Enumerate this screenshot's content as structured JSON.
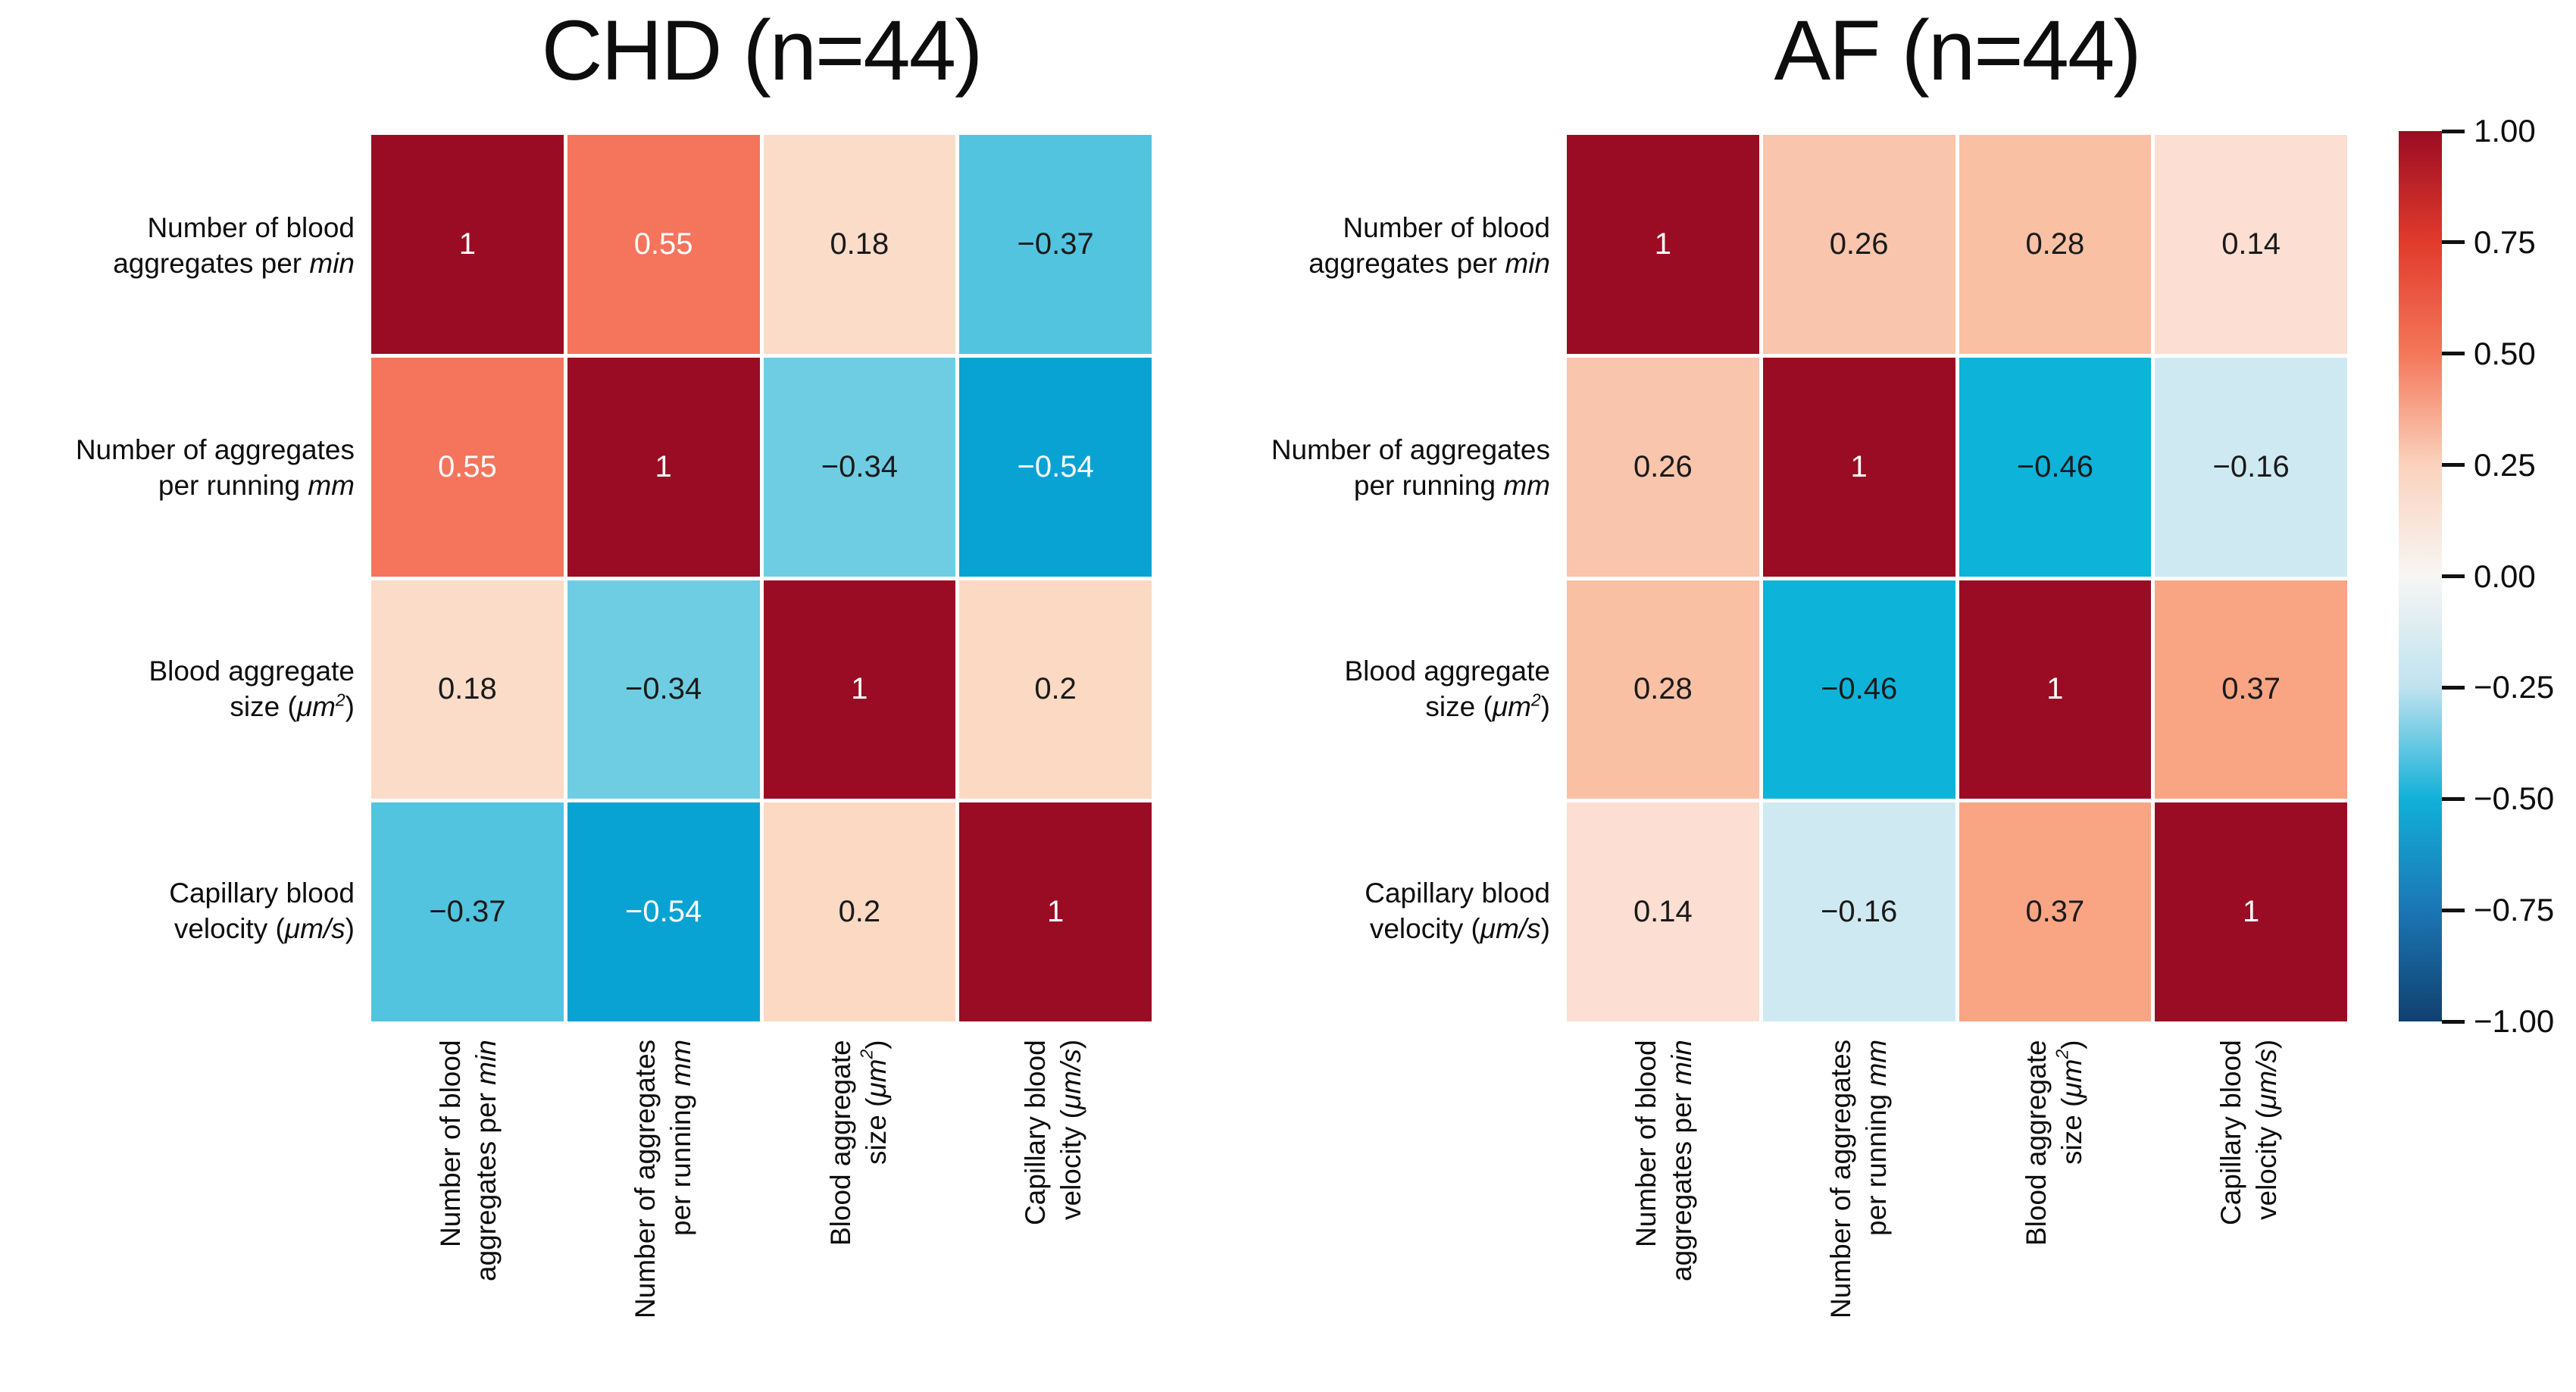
{
  "figure": {
    "background": "#ffffff"
  },
  "chart_data": [
    {
      "type": "heatmap",
      "title": "CHD (n=44)",
      "categories": [
        "Number of blood aggregates per min",
        "Number of aggregates per running mm",
        "Blood aggregate size (μm²)",
        "Capillary blood velocity (μm/s)"
      ],
      "matrix": [
        [
          1,
          0.55,
          0.18,
          -0.37
        ],
        [
          0.55,
          1,
          -0.34,
          -0.54
        ],
        [
          0.18,
          -0.34,
          1,
          0.2
        ],
        [
          -0.37,
          -0.54,
          0.2,
          1
        ]
      ],
      "annotations": [
        [
          "1",
          "0.55",
          "0.18",
          "−0.37"
        ],
        [
          "0.55",
          "1",
          "−0.34",
          "−0.54"
        ],
        [
          "0.18",
          "−0.34",
          "1",
          "0.2"
        ],
        [
          "−0.37",
          "−0.54",
          "0.2",
          "1"
        ]
      ],
      "cell_colors": [
        [
          "#9a0c23",
          "#f4745c",
          "#fbdcc9",
          "#52c4e0"
        ],
        [
          "#f4745c",
          "#9a0c23",
          "#6fcde3",
          "#09a3d3"
        ],
        [
          "#fbdcc9",
          "#6fcde3",
          "#9a0c23",
          "#fbd9c3"
        ],
        [
          "#52c4e0",
          "#09a3d3",
          "#fbd9c3",
          "#9a0c23"
        ]
      ],
      "text_colors": [
        [
          "#ffffff",
          "#ffffff",
          "#1a1a1a",
          "#1a1a1a"
        ],
        [
          "#ffffff",
          "#ffffff",
          "#1a1a1a",
          "#ffffff"
        ],
        [
          "#1a1a1a",
          "#1a1a1a",
          "#ffffff",
          "#1a1a1a"
        ],
        [
          "#1a1a1a",
          "#ffffff",
          "#1a1a1a",
          "#ffffff"
        ]
      ],
      "vmin": -1,
      "vmax": 1,
      "grid": false,
      "legend_position": "shared colorbar right"
    },
    {
      "type": "heatmap",
      "title": "AF (n=44)",
      "categories": [
        "Number of blood aggregates per min",
        "Number of aggregates per running mm",
        "Blood aggregate size (μm²)",
        "Capillary blood velocity (μm/s)"
      ],
      "matrix": [
        [
          1,
          0.26,
          0.28,
          0.14
        ],
        [
          0.26,
          1,
          -0.46,
          -0.16
        ],
        [
          0.28,
          -0.46,
          1,
          0.37
        ],
        [
          0.14,
          -0.16,
          0.37,
          1
        ]
      ],
      "annotations": [
        [
          "1",
          "0.26",
          "0.28",
          "0.14"
        ],
        [
          "0.26",
          "1",
          "−0.46",
          "−0.16"
        ],
        [
          "0.28",
          "−0.46",
          "1",
          "0.37"
        ],
        [
          "0.14",
          "−0.16",
          "0.37",
          "1"
        ]
      ],
      "cell_colors": [
        [
          "#9a0c23",
          "#f9c5ac",
          "#f9c0a4",
          "#fcdfd2"
        ],
        [
          "#f9c5ac",
          "#9a0c23",
          "#0db3d9",
          "#cfe9f2"
        ],
        [
          "#f9c0a4",
          "#0db3d9",
          "#9a0c23",
          "#f9a584"
        ],
        [
          "#fcdfd2",
          "#cfe9f2",
          "#f9a584",
          "#9a0c23"
        ]
      ],
      "text_colors": [
        [
          "#ffffff",
          "#1a1a1a",
          "#1a1a1a",
          "#1a1a1a"
        ],
        [
          "#1a1a1a",
          "#ffffff",
          "#1a1a1a",
          "#1a1a1a"
        ],
        [
          "#1a1a1a",
          "#1a1a1a",
          "#ffffff",
          "#1a1a1a"
        ],
        [
          "#1a1a1a",
          "#1a1a1a",
          "#1a1a1a",
          "#ffffff"
        ]
      ],
      "vmin": -1,
      "vmax": 1,
      "grid": false,
      "legend_position": "shared colorbar right"
    }
  ],
  "axis_labels": {
    "variables": [
      {
        "lines": [
          [
            {
              "t": "Number of blood"
            }
          ],
          [
            {
              "t": "aggregates per "
            },
            {
              "t": "min",
              "i": true
            }
          ]
        ]
      },
      {
        "lines": [
          [
            {
              "t": "Number of aggregates"
            }
          ],
          [
            {
              "t": "per running "
            },
            {
              "t": "mm",
              "i": true
            }
          ]
        ]
      },
      {
        "lines": [
          [
            {
              "t": "Blood aggregate"
            }
          ],
          [
            {
              "t": "size ("
            },
            {
              "t": "μm",
              "i": true
            },
            {
              "t": "2",
              "i": true,
              "sup": true
            },
            {
              "t": ")"
            }
          ]
        ]
      },
      {
        "lines": [
          [
            {
              "t": "Capillary blood"
            }
          ],
          [
            {
              "t": "velocity ("
            },
            {
              "t": "μm/s",
              "i": true
            },
            {
              "t": ")"
            }
          ]
        ]
      }
    ]
  },
  "colorbar": {
    "ticks": [
      "1.00",
      "0.75",
      "0.50",
      "0.25",
      "0.00",
      "−0.25",
      "−0.50",
      "−0.75",
      "−1.00"
    ],
    "tick_values": [
      1,
      0.75,
      0.5,
      0.25,
      0,
      -0.25,
      -0.5,
      -0.75,
      -1
    ],
    "gradient": [
      {
        "value": 1.0,
        "color": "#9a0c23"
      },
      {
        "value": 0.75,
        "color": "#e13b2c"
      },
      {
        "value": 0.5,
        "color": "#f4775a"
      },
      {
        "value": 0.25,
        "color": "#fad2bd"
      },
      {
        "value": 0.0,
        "color": "#f7f6f4"
      },
      {
        "value": -0.25,
        "color": "#bfe2ef"
      },
      {
        "value": -0.5,
        "color": "#12b0d8"
      },
      {
        "value": -0.75,
        "color": "#1b76b4"
      },
      {
        "value": -1.0,
        "color": "#11406f"
      }
    ]
  }
}
